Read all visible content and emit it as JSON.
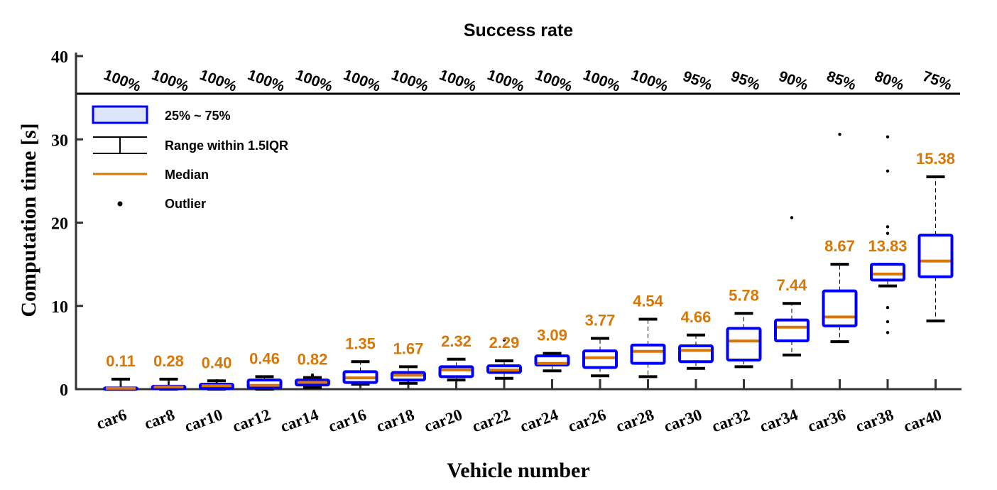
{
  "chart_data": {
    "type": "box",
    "title": "Success rate",
    "xlabel": "Vehicle number",
    "ylabel": "Computation time [s]",
    "ylim": [
      0,
      40
    ],
    "yticks": [
      "0",
      "10",
      "20",
      "30",
      "40"
    ],
    "grid": false,
    "legend_position": "top-left",
    "legend": [
      "25% ~ 75%",
      "Range within 1.5IQR",
      "Median",
      "Outlier"
    ],
    "colors": {
      "box": "#0000ff",
      "box_fill_legend": "#dbe4fa",
      "median": "#d97706",
      "whisker": "#000000"
    },
    "categories": [
      "car6",
      "car8",
      "car10",
      "car12",
      "car14",
      "car16",
      "car18",
      "car20",
      "car22",
      "car24",
      "car26",
      "car28",
      "car30",
      "car32",
      "car34",
      "car36",
      "car38",
      "car40"
    ],
    "success_rate": [
      "100%",
      "100%",
      "100%",
      "100%",
      "100%",
      "100%",
      "100%",
      "100%",
      "100%",
      "100%",
      "100%",
      "100%",
      "95%",
      "95%",
      "90%",
      "85%",
      "80%",
      "75%"
    ],
    "median_labels": [
      "0.11",
      "0.28",
      "0.40",
      "0.46",
      "0.82",
      "1.35",
      "1.67",
      "2.32",
      "2.29",
      "3.09",
      "3.77",
      "4.54",
      "4.66",
      "5.78",
      "7.44",
      "8.67",
      "13.83",
      "15.38"
    ],
    "boxes": [
      {
        "min": 0.0,
        "q1": 0.0,
        "median": 0.11,
        "q3": 0.15,
        "max": 1.2,
        "outliers": []
      },
      {
        "min": 0.0,
        "q1": 0.05,
        "median": 0.28,
        "q3": 0.35,
        "max": 1.2,
        "outliers": []
      },
      {
        "min": 0.0,
        "q1": 0.1,
        "median": 0.4,
        "q3": 0.6,
        "max": 1.0,
        "outliers": []
      },
      {
        "min": 0.0,
        "q1": 0.15,
        "median": 0.46,
        "q3": 1.1,
        "max": 1.5,
        "outliers": []
      },
      {
        "min": 0.2,
        "q1": 0.5,
        "median": 0.82,
        "q3": 1.1,
        "max": 1.4,
        "outliers": [
          1.7
        ]
      },
      {
        "min": 0.6,
        "q1": 0.8,
        "median": 1.35,
        "q3": 2.1,
        "max": 3.3,
        "outliers": []
      },
      {
        "min": 0.7,
        "q1": 1.1,
        "median": 1.67,
        "q3": 2.0,
        "max": 2.7,
        "outliers": []
      },
      {
        "min": 1.1,
        "q1": 1.5,
        "median": 2.32,
        "q3": 2.7,
        "max": 3.6,
        "outliers": []
      },
      {
        "min": 1.3,
        "q1": 2.0,
        "median": 2.29,
        "q3": 2.8,
        "max": 3.4,
        "outliers": [
          5.9
        ]
      },
      {
        "min": 2.2,
        "q1": 2.9,
        "median": 3.09,
        "q3": 4.0,
        "max": 4.3,
        "outliers": []
      },
      {
        "min": 1.6,
        "q1": 2.6,
        "median": 3.77,
        "q3": 4.6,
        "max": 6.1,
        "outliers": []
      },
      {
        "min": 1.5,
        "q1": 3.1,
        "median": 4.54,
        "q3": 5.3,
        "max": 8.4,
        "outliers": []
      },
      {
        "min": 2.5,
        "q1": 3.3,
        "median": 4.66,
        "q3": 5.2,
        "max": 6.5,
        "outliers": []
      },
      {
        "min": 2.7,
        "q1": 3.5,
        "median": 5.78,
        "q3": 7.3,
        "max": 9.1,
        "outliers": []
      },
      {
        "min": 4.1,
        "q1": 5.8,
        "median": 7.44,
        "q3": 8.3,
        "max": 10.3,
        "outliers": [
          20.6
        ]
      },
      {
        "min": 5.7,
        "q1": 7.6,
        "median": 8.67,
        "q3": 11.8,
        "max": 15.0,
        "outliers": [
          30.6
        ]
      },
      {
        "min": 12.4,
        "q1": 13.1,
        "median": 13.83,
        "q3": 15.0,
        "max": 15.0,
        "outliers": [
          30.3,
          26.2,
          19.5,
          18.7,
          9.8,
          8.1,
          6.8
        ]
      },
      {
        "min": 8.2,
        "q1": 13.5,
        "median": 15.38,
        "q3": 18.5,
        "max": 25.5,
        "outliers": []
      }
    ]
  }
}
